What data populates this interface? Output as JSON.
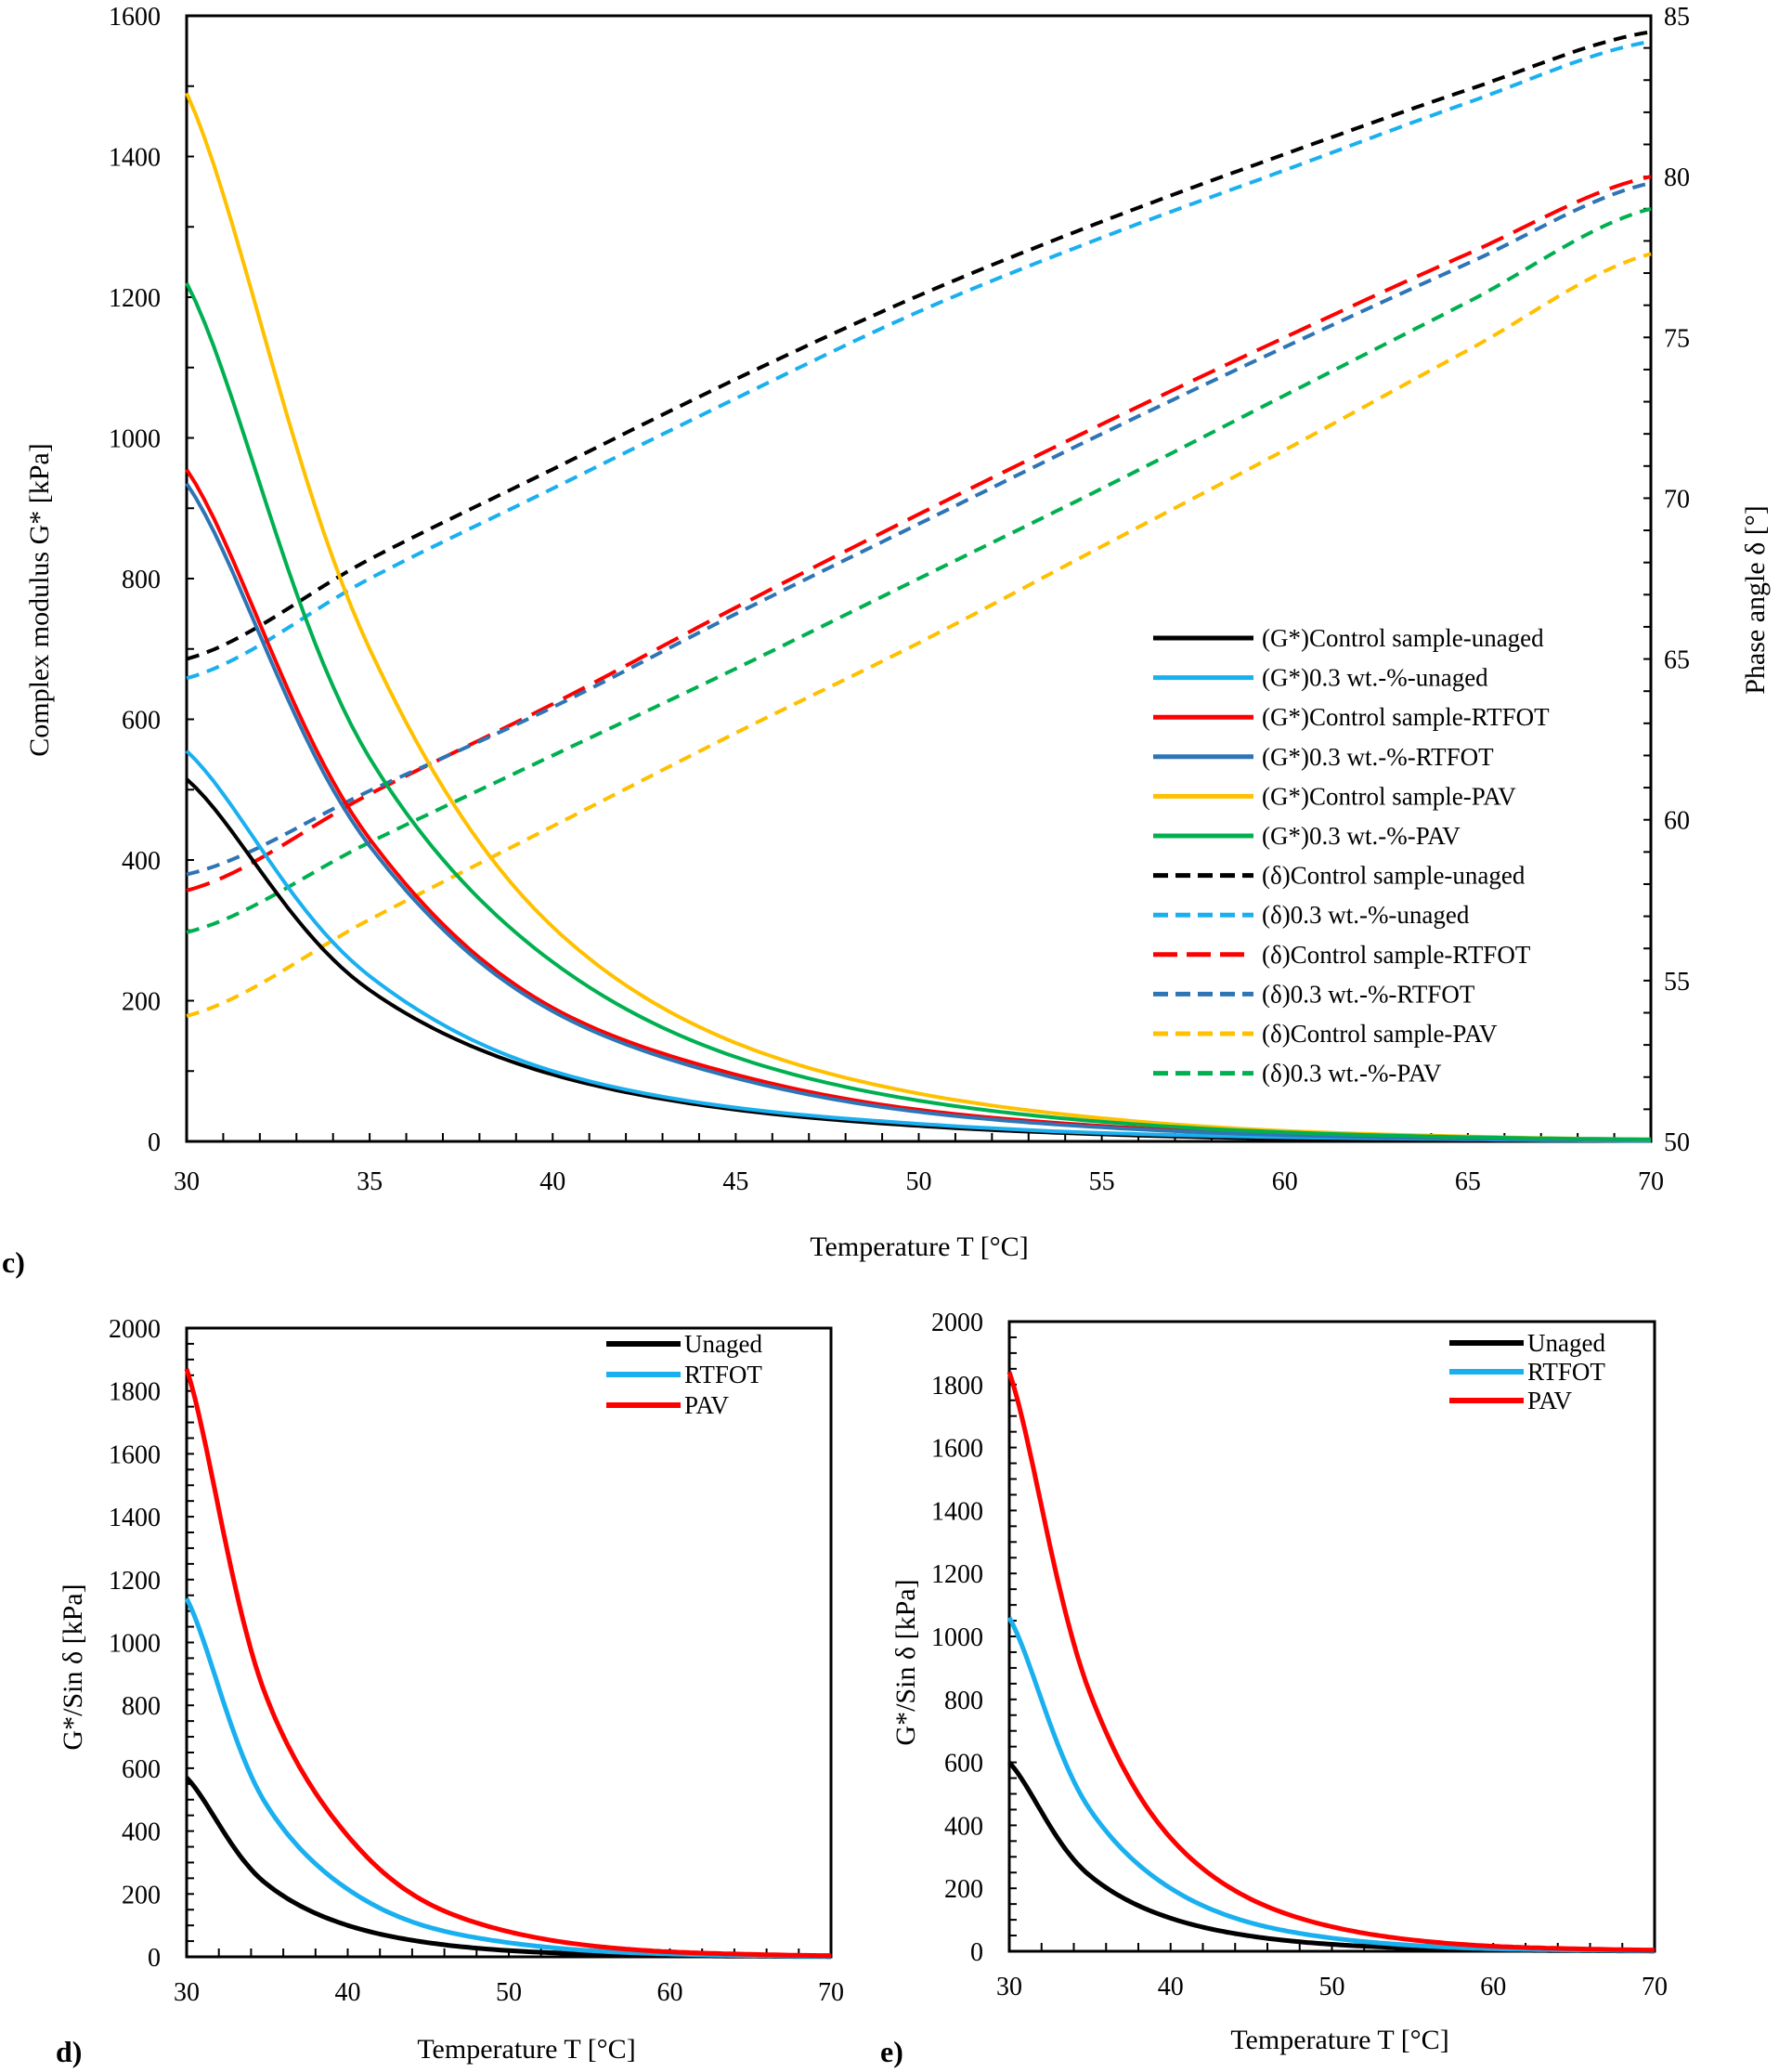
{
  "chart_data": [
    {
      "panel": "c)",
      "type": "line",
      "xlabel": "Temperature T [°C]",
      "ylabel": "Complex modulus G* [kPa]",
      "y2label": "Phase angle δ [°]",
      "xlim": [
        30,
        70
      ],
      "ylim": [
        0,
        1600
      ],
      "y2lim": [
        50,
        85
      ],
      "xticks": [
        30,
        35,
        40,
        45,
        50,
        55,
        60,
        65,
        70
      ],
      "yticks": [
        0,
        200,
        400,
        600,
        800,
        1000,
        1200,
        1400,
        1600
      ],
      "y2ticks": [
        50,
        55,
        60,
        65,
        70,
        75,
        80,
        85
      ],
      "grid": false,
      "legend": "right",
      "x": [
        30,
        35,
        40,
        45,
        50,
        55,
        60,
        65,
        70
      ],
      "series": [
        {
          "name": "(G*)Control sample-unaged",
          "axis": "left",
          "style": "solid",
          "color": "#000000",
          "values": [
            515,
            215,
            95,
            45,
            22,
            10,
            4,
            2,
            1
          ]
        },
        {
          "name": "(G*)0.3 wt.-%-unaged",
          "axis": "left",
          "style": "solid",
          "color": "#1AB0EF",
          "values": [
            555,
            235,
            100,
            48,
            25,
            12,
            6,
            3,
            1
          ]
        },
        {
          "name": "(G*)Control sample-RTFOT",
          "axis": "left",
          "style": "solid",
          "color": "#FF0000",
          "values": [
            955,
            430,
            190,
            95,
            45,
            22,
            10,
            5,
            2
          ]
        },
        {
          "name": "(G*)0.3 wt.-%-RTFOT",
          "axis": "left",
          "style": "solid",
          "color": "#2E75B6",
          "values": [
            935,
            420,
            185,
            90,
            42,
            20,
            9,
            4,
            2
          ]
        },
        {
          "name": "(G*)Control sample-PAV",
          "axis": "left",
          "style": "solid",
          "color": "#FFC000",
          "values": [
            1490,
            700,
            305,
            140,
            68,
            33,
            15,
            7,
            3
          ]
        },
        {
          "name": "(G*)0.3 wt.-%-PAV",
          "axis": "left",
          "style": "solid",
          "color": "#00B050",
          "values": [
            1220,
            545,
            255,
            120,
            58,
            28,
            13,
            6,
            3
          ]
        },
        {
          "name": "(δ)Control sample-unaged",
          "axis": "right",
          "style": "dash",
          "color": "#000000",
          "values": [
            65.0,
            68.1,
            70.9,
            73.7,
            76.3,
            78.6,
            80.7,
            82.7,
            84.5
          ]
        },
        {
          "name": "(δ)0.3 wt.-%-unaged",
          "axis": "right",
          "style": "dash",
          "color": "#1AB0EF",
          "values": [
            64.4,
            67.5,
            70.3,
            73.1,
            75.8,
            78.1,
            80.2,
            82.3,
            84.2
          ]
        },
        {
          "name": "(δ)Control sample-RTFOT",
          "axis": "right",
          "style": "longdash",
          "color": "#FF0000",
          "values": [
            57.8,
            60.8,
            63.6,
            66.6,
            69.5,
            72.3,
            75.0,
            77.6,
            80.0
          ]
        },
        {
          "name": "(δ)0.3 wt.-%-RTFOT",
          "axis": "right",
          "style": "dash",
          "color": "#2E75B6",
          "values": [
            58.3,
            60.9,
            63.5,
            66.4,
            69.2,
            72.0,
            74.7,
            77.3,
            79.8
          ]
        },
        {
          "name": "(δ)Control sample-PAV",
          "axis": "right",
          "style": "dash",
          "color": "#FFC000",
          "values": [
            53.9,
            56.9,
            59.8,
            62.7,
            65.5,
            68.5,
            71.5,
            74.6,
            77.6
          ]
        },
        {
          "name": "(δ)0.3 wt.-%-PAV",
          "axis": "right",
          "style": "dash",
          "color": "#00B050",
          "values": [
            56.5,
            59.3,
            62.0,
            64.7,
            67.5,
            70.3,
            73.2,
            76.1,
            79.0
          ]
        }
      ]
    },
    {
      "panel": "d)",
      "type": "line",
      "xlabel": "Temperature T [°C]",
      "ylabel": "G*/Sin δ [kPa]",
      "xlim": [
        30,
        70
      ],
      "ylim": [
        0,
        2000
      ],
      "xticks": [
        30,
        40,
        50,
        60,
        70
      ],
      "yticks": [
        0,
        200,
        400,
        600,
        800,
        1000,
        1200,
        1400,
        1600,
        1800,
        2000
      ],
      "grid": false,
      "legend": "top-right",
      "x": [
        30,
        35,
        40,
        45,
        50,
        55,
        60,
        65,
        70
      ],
      "series": [
        {
          "name": "Unaged",
          "style": "solid",
          "color": "#000000",
          "values": [
            570,
            230,
            100,
            45,
            20,
            9,
            4,
            2,
            1
          ]
        },
        {
          "name": "RTFOT",
          "style": "solid",
          "color": "#1AB0EF",
          "values": [
            1140,
            480,
            215,
            95,
            45,
            20,
            9,
            4,
            2
          ]
        },
        {
          "name": "PAV",
          "style": "solid",
          "color": "#FF0000",
          "values": [
            1870,
            820,
            385,
            170,
            80,
            36,
            16,
            8,
            4
          ]
        }
      ]
    },
    {
      "panel": "e)",
      "type": "line",
      "xlabel": "Temperature T [°C]",
      "ylabel": "G*/Sin δ [kPa]",
      "xlim": [
        30,
        70
      ],
      "ylim": [
        0,
        2000
      ],
      "xticks": [
        30,
        40,
        50,
        60,
        70
      ],
      "yticks": [
        0,
        200,
        400,
        600,
        800,
        1000,
        1200,
        1400,
        1600,
        1800,
        2000
      ],
      "grid": false,
      "legend": "top-right",
      "x": [
        30,
        35,
        40,
        45,
        50,
        55,
        60,
        65,
        70
      ],
      "series": [
        {
          "name": "Unaged",
          "style": "solid",
          "color": "#000000",
          "values": [
            600,
            240,
            105,
            48,
            22,
            10,
            4,
            2,
            1
          ]
        },
        {
          "name": "RTFOT",
          "style": "solid",
          "color": "#1AB0EF",
          "values": [
            1060,
            450,
            200,
            90,
            42,
            19,
            8,
            4,
            2
          ]
        },
        {
          "name": "PAV",
          "style": "solid",
          "color": "#FF0000",
          "values": [
            1840,
            820,
            360,
            165,
            78,
            36,
            16,
            8,
            4
          ]
        }
      ]
    }
  ]
}
